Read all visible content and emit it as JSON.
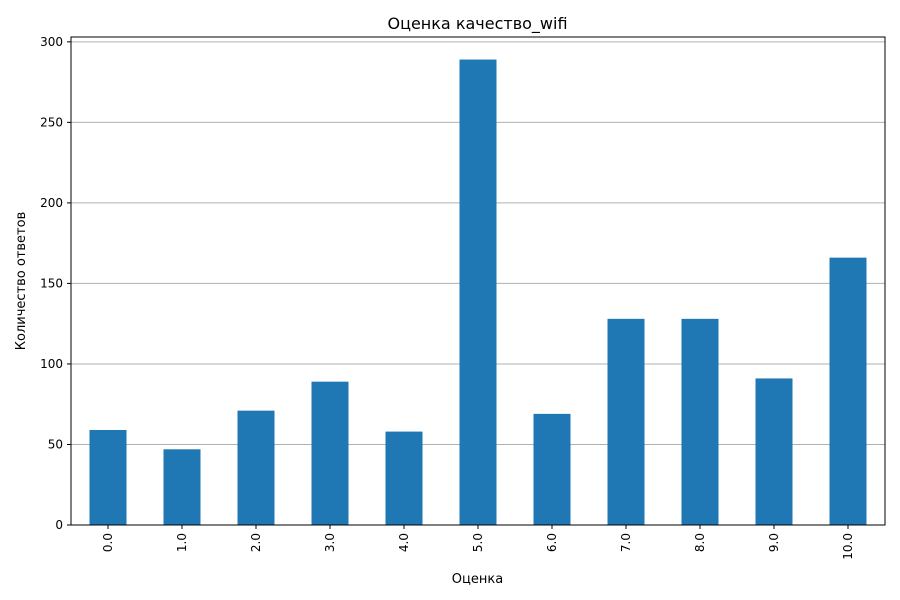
{
  "chart_data": {
    "type": "bar",
    "title": "Оценка качество_wifi",
    "xlabel": "Оценка",
    "ylabel": "Количество ответов",
    "categories": [
      "0.0",
      "1.0",
      "2.0",
      "3.0",
      "4.0",
      "5.0",
      "6.0",
      "7.0",
      "8.0",
      "9.0",
      "10.0"
    ],
    "values": [
      59,
      47,
      71,
      89,
      58,
      289,
      69,
      128,
      128,
      91,
      166
    ],
    "ylim": [
      0,
      303
    ],
    "yticks": [
      0,
      50,
      100,
      150,
      200,
      250,
      300
    ],
    "grid": "y",
    "legend": "none",
    "bar_color": "#1f77b4"
  }
}
